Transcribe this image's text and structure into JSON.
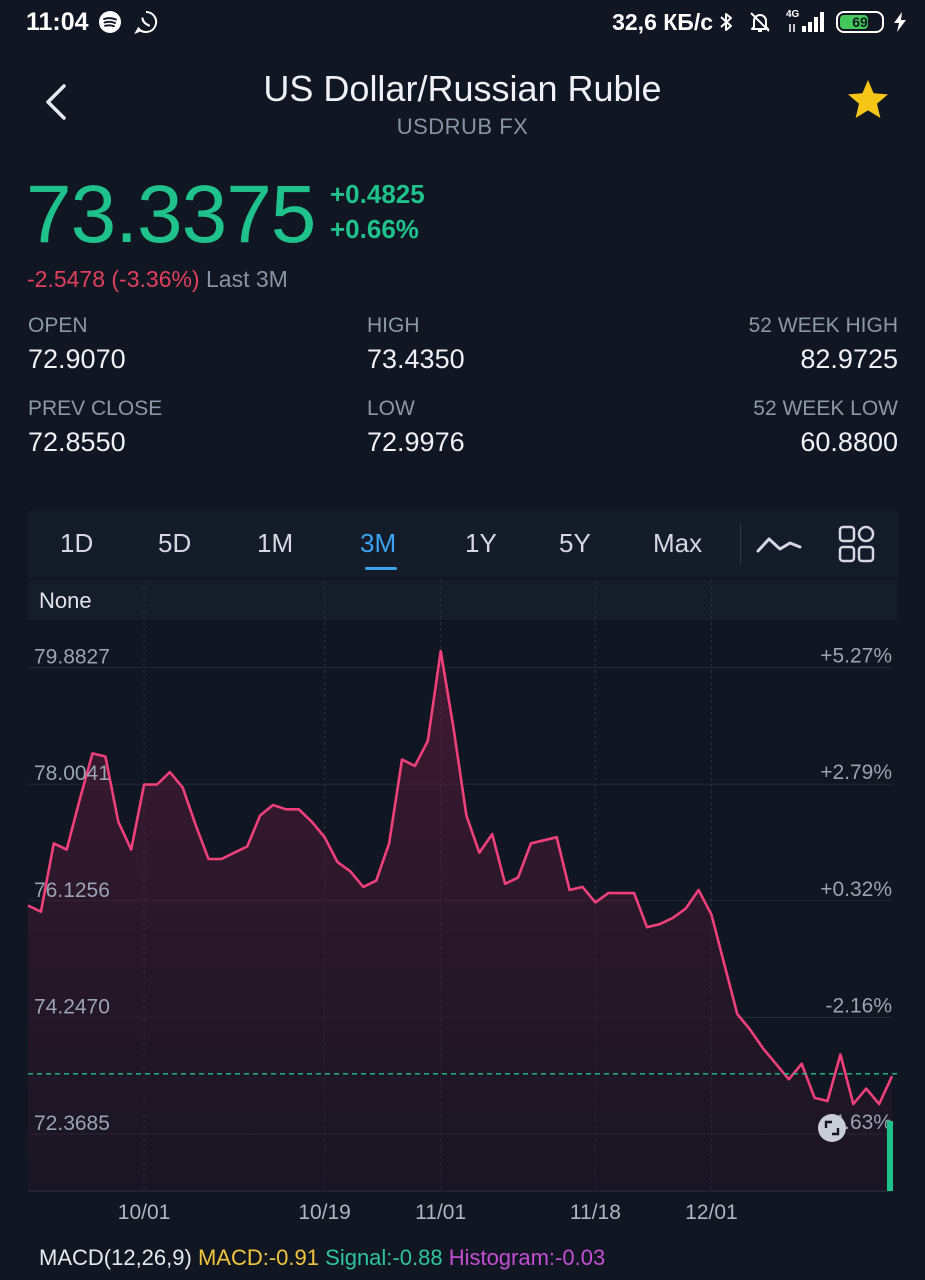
{
  "status_bar": {
    "time": "11:04",
    "net_speed": "32,6 КБ/с",
    "network_type": "4G",
    "battery": "69",
    "icons": [
      "spotify-icon",
      "whatsapp-icon",
      "bluetooth-icon",
      "bell-off-icon",
      "signal-icon",
      "battery-icon",
      "charging-icon"
    ]
  },
  "header": {
    "title": "US Dollar/Russian Ruble",
    "subtitle": "USDRUB  FX"
  },
  "quote": {
    "price": "73.3375",
    "change_abs": "+0.4825",
    "change_pct": "+0.66%",
    "period_change": "-2.5478 (-3.36%)",
    "period_label": "Last 3M"
  },
  "stats": {
    "open": {
      "label": "OPEN",
      "value": "72.9070"
    },
    "high": {
      "label": "HIGH",
      "value": "73.4350"
    },
    "week52_high": {
      "label": "52 WEEK HIGH",
      "value": "82.9725"
    },
    "prev_close": {
      "label": "PREV CLOSE",
      "value": "72.8550"
    },
    "low": {
      "label": "LOW",
      "value": "72.9976"
    },
    "week52_low": {
      "label": "52 WEEK LOW",
      "value": "60.8800"
    }
  },
  "tabs": [
    {
      "id": "1d",
      "label": "1D"
    },
    {
      "id": "5d",
      "label": "5D"
    },
    {
      "id": "1m",
      "label": "1M"
    },
    {
      "id": "3m",
      "label": "3M",
      "active": true
    },
    {
      "id": "1y",
      "label": "1Y"
    },
    {
      "id": "5y",
      "label": "5Y"
    },
    {
      "id": "max",
      "label": "Max"
    }
  ],
  "indicator_overlay": "None",
  "colors": {
    "up": "#1ec28a",
    "down": "#e0405e",
    "accent": "#3aa4f0",
    "line": "#f0407a",
    "star": "#f5c518"
  },
  "chart_data": {
    "type": "area",
    "y_ticks": [
      "79.8827",
      "78.0041",
      "76.1256",
      "74.2470",
      "72.3685"
    ],
    "y_tick_values": [
      79.8827,
      78.0041,
      76.1256,
      74.247,
      72.3685
    ],
    "pct_ticks": [
      "+5.27%",
      "+2.79%",
      "+0.32%",
      "-2.16%",
      "-4.63%"
    ],
    "x_labels": [
      {
        "label": "10/01",
        "index": 9
      },
      {
        "label": "10/19",
        "index": 23
      },
      {
        "label": "11/01",
        "index": 32
      },
      {
        "label": "11/18",
        "index": 44
      },
      {
        "label": "12/01",
        "index": 53
      }
    ],
    "ylim": [
      71.45,
      80.65
    ],
    "reference_value": 73.3375,
    "values": [
      76.05,
      75.95,
      77.05,
      76.95,
      77.75,
      78.5,
      78.45,
      77.4,
      76.95,
      78.0,
      78.0,
      78.2,
      77.95,
      77.35,
      76.8,
      76.8,
      76.9,
      77.0,
      77.5,
      77.67,
      77.6,
      77.6,
      77.4,
      77.15,
      76.75,
      76.6,
      76.35,
      76.45,
      77.05,
      78.4,
      78.3,
      78.7,
      80.15,
      78.9,
      77.5,
      76.9,
      77.2,
      76.4,
      76.5,
      77.05,
      77.1,
      77.15,
      76.3,
      76.35,
      76.1,
      76.25,
      76.25,
      76.25,
      75.7,
      75.75,
      75.85,
      76.0,
      76.3,
      75.9,
      75.1,
      74.3,
      74.05,
      73.75,
      73.5,
      73.25,
      73.5,
      72.95,
      72.9,
      73.65,
      72.85,
      73.1,
      72.85,
      73.3
    ],
    "macd": {
      "label": "MACD(12,26,9)",
      "macd": "MACD:-0.91",
      "signal": "Signal:-0.88",
      "histogram": "Histogram:-0.03"
    }
  }
}
